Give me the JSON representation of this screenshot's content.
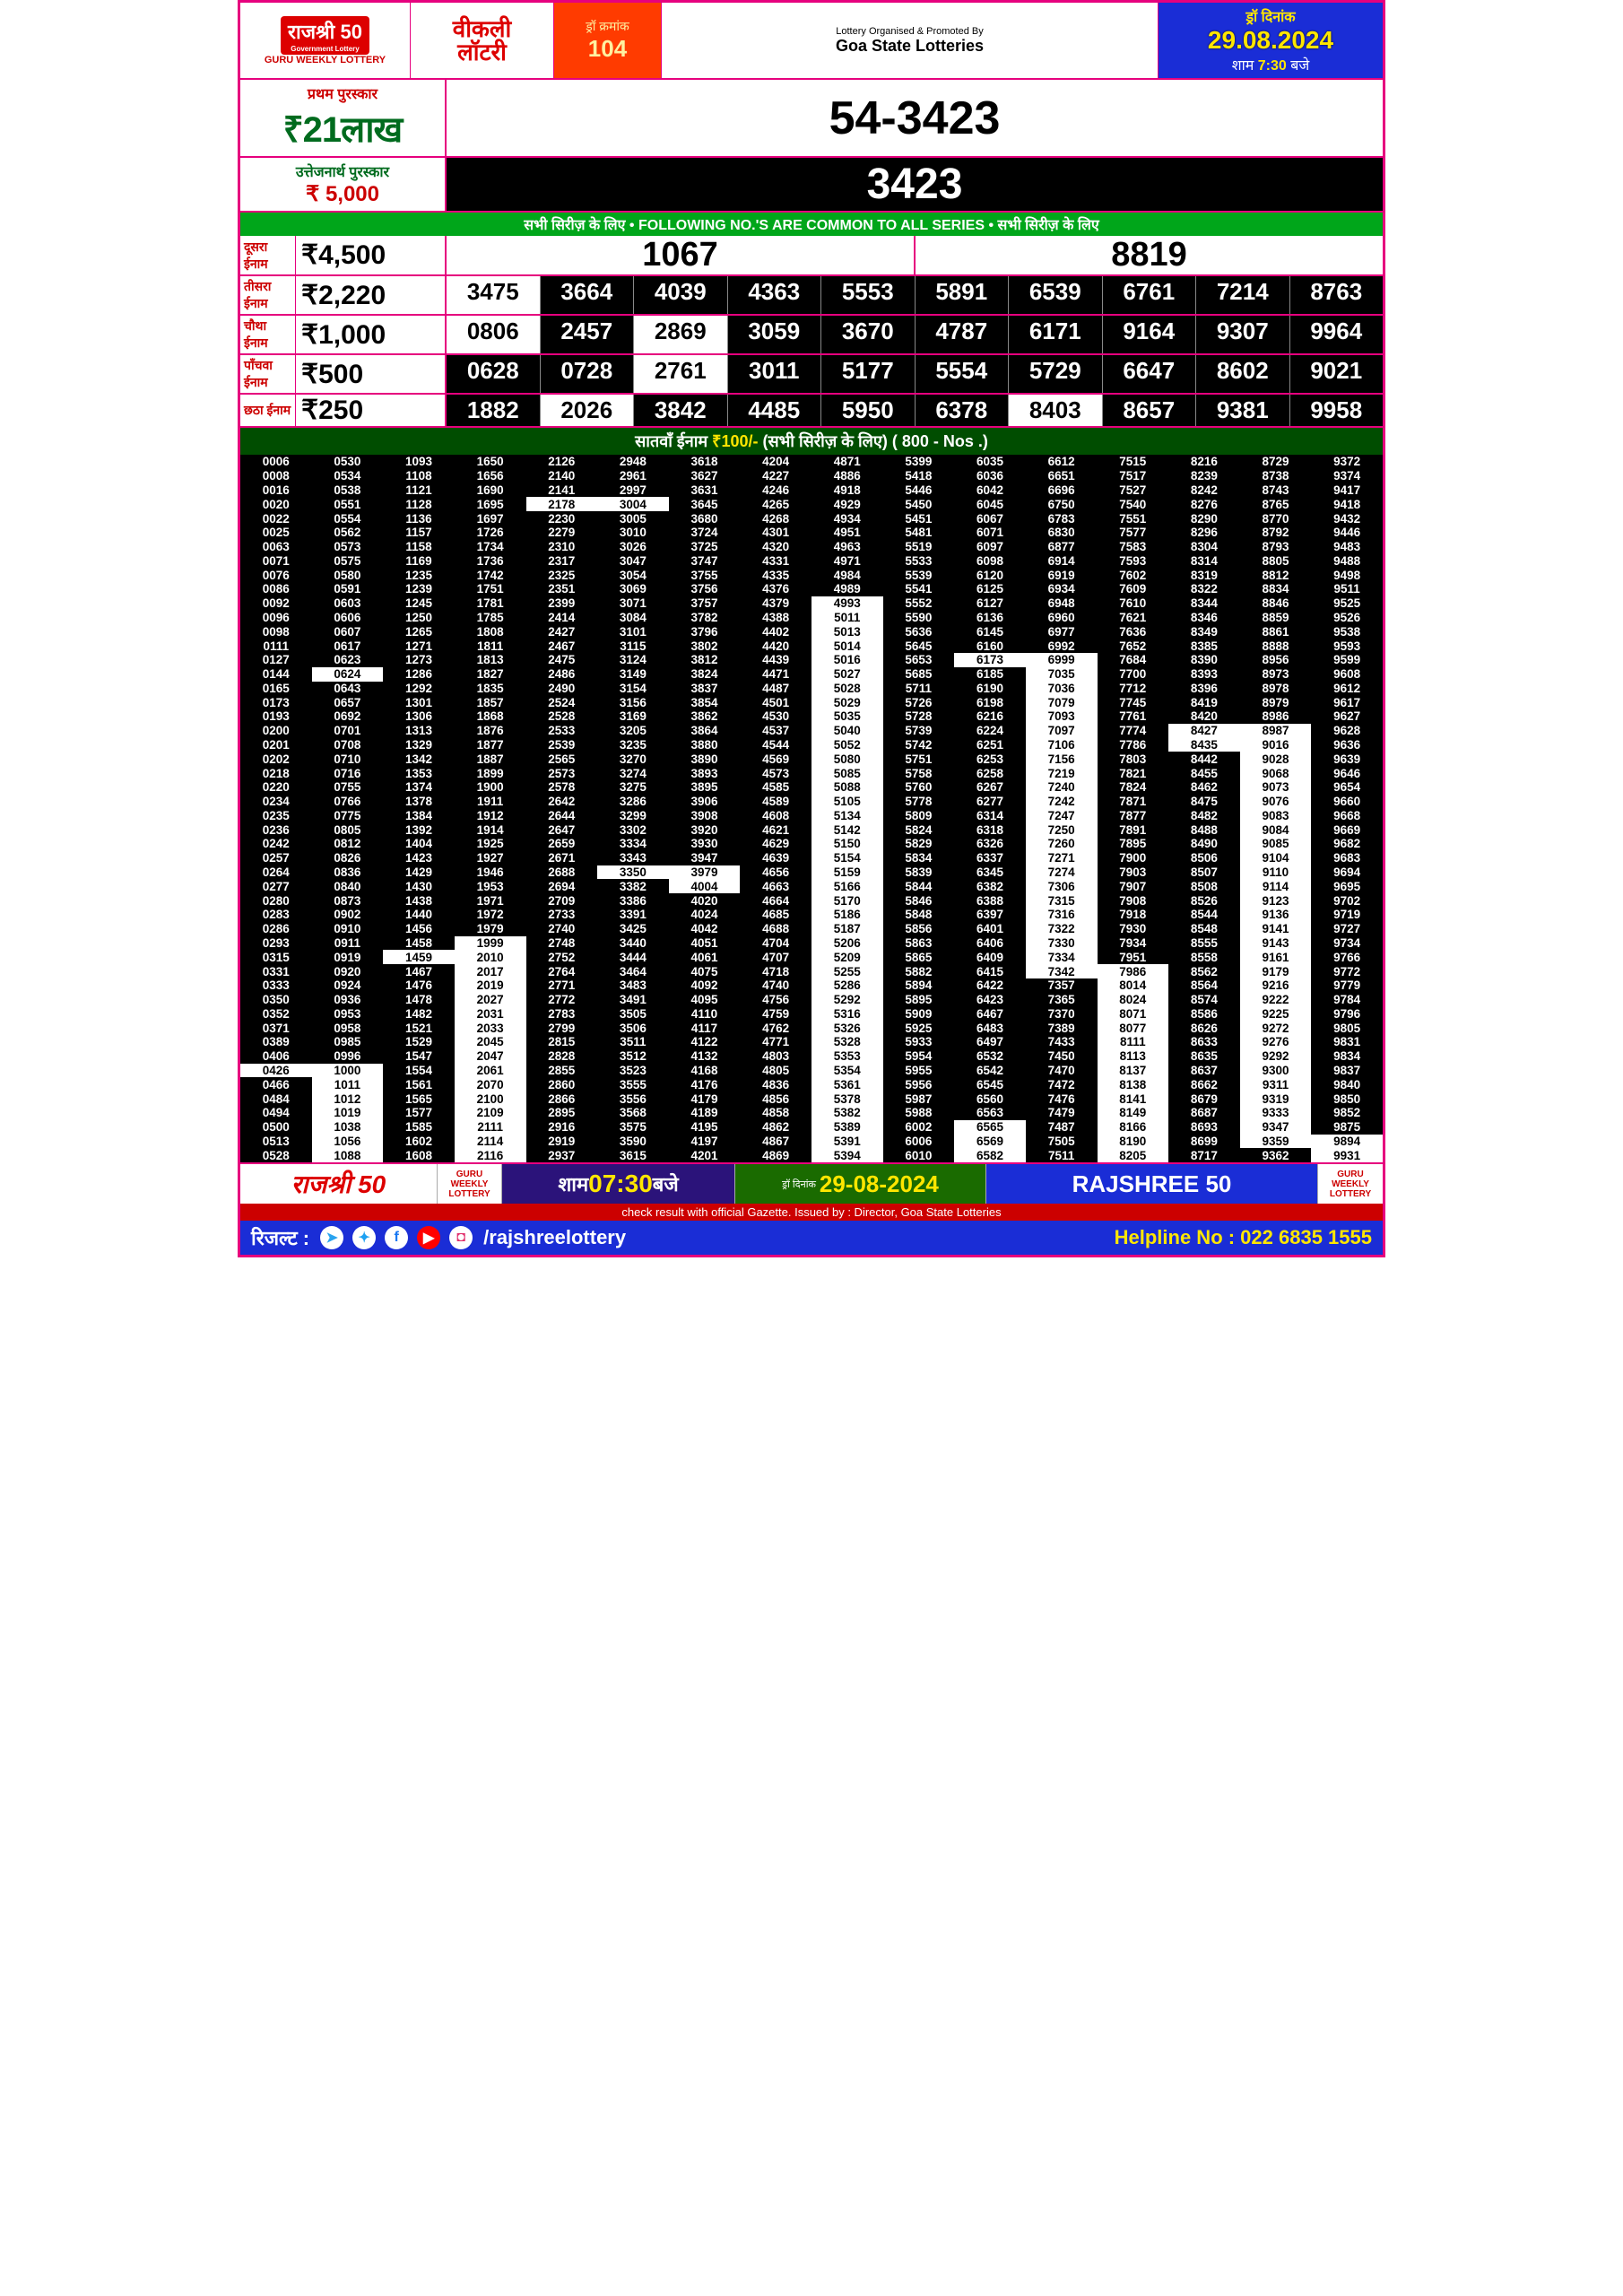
{
  "header": {
    "logo_main": "राजश्री 50",
    "logo_sub": "Government Lottery",
    "gwl": "GURU WEEKLY LOTTERY",
    "weekly_l1": "वीकली",
    "weekly_l2": "लॉटरी",
    "draw_lbl": "ड्रॉ क्रमांक",
    "draw_no": "104",
    "org_small": "Lottery Organised & Promoted By",
    "org_main": "Goa State Lotteries",
    "date_lbl": "ड्रॉ दिनांक",
    "date_val": "29.08.2024",
    "time_prefix": "शाम ",
    "time_val": "7:30",
    "time_suffix": " बजे"
  },
  "first": {
    "lbl": "प्रथम पुरस्कार",
    "amt": "₹21लाख",
    "num": "54-3423"
  },
  "cons": {
    "lbl": "उत्तेजनार्थ पुरस्कार",
    "amt": "₹ 5,000",
    "num": "3423"
  },
  "greenbar": "सभी सिरीज़ के लिए  •  FOLLOWING NO.'S ARE COMMON TO ALL SERIES  •  सभी सिरीज़ के लिए",
  "p2": {
    "lbl": "दूसरा ईनाम",
    "amt": "₹4,500",
    "n1": "1067",
    "n2": "8819"
  },
  "rows": [
    {
      "lbl": "तीसरा ईनाम",
      "amt": "₹2,220",
      "nums": [
        "3475",
        "3664",
        "4039",
        "4363",
        "5553",
        "5891",
        "6539",
        "6761",
        "7214",
        "8763"
      ],
      "white": [
        0
      ]
    },
    {
      "lbl": "चौथा ईनाम",
      "amt": "₹1,000",
      "nums": [
        "0806",
        "2457",
        "2869",
        "3059",
        "3670",
        "4787",
        "6171",
        "9164",
        "9307",
        "9964"
      ],
      "white": [
        0,
        2
      ]
    },
    {
      "lbl": "पाँचवा ईनाम",
      "amt": "₹500",
      "nums": [
        "0628",
        "0728",
        "2761",
        "3011",
        "5177",
        "5554",
        "5729",
        "6647",
        "8602",
        "9021"
      ],
      "white": [
        2
      ]
    },
    {
      "lbl": "छठा ईनाम",
      "amt": "₹250",
      "nums": [
        "1882",
        "2026",
        "3842",
        "4485",
        "5950",
        "6378",
        "8403",
        "8657",
        "9381",
        "9958"
      ],
      "white": [
        1,
        6
      ]
    }
  ],
  "seventh_bar": {
    "pre": "सातवाँ ईनाम ",
    "amt": "₹100/-",
    "mid": " (सभी सिरीज़ के लिए)   ",
    "count": "( 800 - Nos .)"
  },
  "grid_cols": [
    [
      "0006",
      "0008",
      "0016",
      "0020",
      "0022",
      "0025",
      "0063",
      "0071",
      "0076",
      "0086",
      "0092",
      "0096",
      "0098",
      "0111",
      "0127",
      "0144",
      "0165",
      "0173",
      "0193",
      "0200",
      "0201",
      "0202",
      "0218",
      "0220",
      "0234",
      "0235",
      "0236",
      "0242",
      "0257",
      "0264",
      "0277",
      "0280",
      "0283",
      "0286",
      "0293",
      "0315",
      "0331",
      "0333",
      "0350",
      "0352",
      "0371",
      "0389",
      "0406",
      "0426",
      "0466",
      "0484",
      "0494",
      "0500",
      "0513",
      "0528"
    ],
    [
      "0530",
      "0534",
      "0538",
      "0551",
      "0554",
      "0562",
      "0573",
      "0575",
      "0580",
      "0591",
      "0603",
      "0606",
      "0607",
      "0617",
      "0623",
      "0624",
      "0643",
      "0657",
      "0692",
      "0701",
      "0708",
      "0710",
      "0716",
      "0755",
      "0766",
      "0775",
      "0805",
      "0812",
      "0826",
      "0836",
      "0840",
      "0873",
      "0902",
      "0910",
      "0911",
      "0919",
      "0920",
      "0924",
      "0936",
      "0953",
      "0958",
      "0985",
      "0996",
      "1000",
      "1011",
      "1012",
      "1019",
      "1038",
      "1056",
      "1088"
    ],
    [
      "1093",
      "1108",
      "1121",
      "1128",
      "1136",
      "1157",
      "1158",
      "1169",
      "1235",
      "1239",
      "1245",
      "1250",
      "1265",
      "1271",
      "1273",
      "1286",
      "1292",
      "1301",
      "1306",
      "1313",
      "1329",
      "1342",
      "1353",
      "1374",
      "1378",
      "1384",
      "1392",
      "1404",
      "1423",
      "1429",
      "1430",
      "1438",
      "1440",
      "1456",
      "1458",
      "1459",
      "1467",
      "1476",
      "1478",
      "1482",
      "1521",
      "1529",
      "1547",
      "1554",
      "1561",
      "1565",
      "1577",
      "1585",
      "1602",
      "1608"
    ],
    [
      "1650",
      "1656",
      "1690",
      "1695",
      "1697",
      "1726",
      "1734",
      "1736",
      "1742",
      "1751",
      "1781",
      "1785",
      "1808",
      "1811",
      "1813",
      "1827",
      "1835",
      "1857",
      "1868",
      "1876",
      "1877",
      "1887",
      "1899",
      "1900",
      "1911",
      "1912",
      "1914",
      "1925",
      "1927",
      "1946",
      "1953",
      "1971",
      "1972",
      "1979",
      "1999",
      "2010",
      "2017",
      "2019",
      "2027",
      "2031",
      "2033",
      "2045",
      "2047",
      "2061",
      "2070",
      "2100",
      "2109",
      "2111",
      "2114",
      "2116"
    ],
    [
      "2126",
      "2140",
      "2141",
      "2178",
      "2230",
      "2279",
      "2310",
      "2317",
      "2325",
      "2351",
      "2399",
      "2414",
      "2427",
      "2467",
      "2475",
      "2486",
      "2490",
      "2524",
      "2528",
      "2533",
      "2539",
      "2565",
      "2573",
      "2578",
      "2642",
      "2644",
      "2647",
      "2659",
      "2671",
      "2688",
      "2694",
      "2709",
      "2733",
      "2740",
      "2748",
      "2752",
      "2764",
      "2771",
      "2772",
      "2783",
      "2799",
      "2815",
      "2828",
      "2855",
      "2860",
      "2866",
      "2895",
      "2916",
      "2919",
      "2937"
    ],
    [
      "2948",
      "2961",
      "2997",
      "3004",
      "3005",
      "3010",
      "3026",
      "3047",
      "3054",
      "3069",
      "3071",
      "3084",
      "3101",
      "3115",
      "3124",
      "3149",
      "3154",
      "3156",
      "3169",
      "3205",
      "3235",
      "3270",
      "3274",
      "3275",
      "3286",
      "3299",
      "3302",
      "3334",
      "3343",
      "3350",
      "3382",
      "3386",
      "3391",
      "3425",
      "3440",
      "3444",
      "3464",
      "3483",
      "3491",
      "3505",
      "3506",
      "3511",
      "3512",
      "3523",
      "3555",
      "3556",
      "3568",
      "3575",
      "3590",
      "3615"
    ],
    [
      "3618",
      "3627",
      "3631",
      "3645",
      "3680",
      "3724",
      "3725",
      "3747",
      "3755",
      "3756",
      "3757",
      "3782",
      "3796",
      "3802",
      "3812",
      "3824",
      "3837",
      "3854",
      "3862",
      "3864",
      "3880",
      "3890",
      "3893",
      "3895",
      "3906",
      "3908",
      "3920",
      "3930",
      "3947",
      "3979",
      "4004",
      "4020",
      "4024",
      "4042",
      "4051",
      "4061",
      "4075",
      "4092",
      "4095",
      "4110",
      "4117",
      "4122",
      "4132",
      "4168",
      "4176",
      "4179",
      "4189",
      "4195",
      "4197",
      "4201"
    ],
    [
      "4204",
      "4227",
      "4246",
      "4265",
      "4268",
      "4301",
      "4320",
      "4331",
      "4335",
      "4376",
      "4379",
      "4388",
      "4402",
      "4420",
      "4439",
      "4471",
      "4487",
      "4501",
      "4530",
      "4537",
      "4544",
      "4569",
      "4573",
      "4585",
      "4589",
      "4608",
      "4621",
      "4629",
      "4639",
      "4656",
      "4663",
      "4664",
      "4685",
      "4688",
      "4704",
      "4707",
      "4718",
      "4740",
      "4756",
      "4759",
      "4762",
      "4771",
      "4803",
      "4805",
      "4836",
      "4856",
      "4858",
      "4862",
      "4867",
      "4869"
    ],
    [
      "4871",
      "4886",
      "4918",
      "4929",
      "4934",
      "4951",
      "4963",
      "4971",
      "4984",
      "4989",
      "4993",
      "5011",
      "5013",
      "5014",
      "5016",
      "5027",
      "5028",
      "5029",
      "5035",
      "5040",
      "5052",
      "5080",
      "5085",
      "5088",
      "5105",
      "5134",
      "5142",
      "5150",
      "5154",
      "5159",
      "5166",
      "5170",
      "5186",
      "5187",
      "5206",
      "5209",
      "5255",
      "5286",
      "5292",
      "5316",
      "5326",
      "5328",
      "5353",
      "5354",
      "5361",
      "5378",
      "5382",
      "5389",
      "5391",
      "5394"
    ],
    [
      "5399",
      "5418",
      "5446",
      "5450",
      "5451",
      "5481",
      "5519",
      "5533",
      "5539",
      "5541",
      "5552",
      "5590",
      "5636",
      "5645",
      "5653",
      "5685",
      "5711",
      "5726",
      "5728",
      "5739",
      "5742",
      "5751",
      "5758",
      "5760",
      "5778",
      "5809",
      "5824",
      "5829",
      "5834",
      "5839",
      "5844",
      "5846",
      "5848",
      "5856",
      "5863",
      "5865",
      "5882",
      "5894",
      "5895",
      "5909",
      "5925",
      "5933",
      "5954",
      "5955",
      "5956",
      "5987",
      "5988",
      "6002",
      "6006",
      "6010"
    ],
    [
      "6035",
      "6036",
      "6042",
      "6045",
      "6067",
      "6071",
      "6097",
      "6098",
      "6120",
      "6125",
      "6127",
      "6136",
      "6145",
      "6160",
      "6173",
      "6185",
      "6190",
      "6198",
      "6216",
      "6224",
      "6251",
      "6253",
      "6258",
      "6267",
      "6277",
      "6314",
      "6318",
      "6326",
      "6337",
      "6345",
      "6382",
      "6388",
      "6397",
      "6401",
      "6406",
      "6409",
      "6415",
      "6422",
      "6423",
      "6467",
      "6483",
      "6497",
      "6532",
      "6542",
      "6545",
      "6560",
      "6563",
      "6565",
      "6569",
      "6582"
    ],
    [
      "6612",
      "6651",
      "6696",
      "6750",
      "6783",
      "6830",
      "6877",
      "6914",
      "6919",
      "6934",
      "6948",
      "6960",
      "6977",
      "6992",
      "6999",
      "7035",
      "7036",
      "7079",
      "7093",
      "7097",
      "7106",
      "7156",
      "7219",
      "7240",
      "7242",
      "7247",
      "7250",
      "7260",
      "7271",
      "7274",
      "7306",
      "7315",
      "7316",
      "7322",
      "7330",
      "7334",
      "7342",
      "7357",
      "7365",
      "7370",
      "7389",
      "7433",
      "7450",
      "7470",
      "7472",
      "7476",
      "7479",
      "7487",
      "7505",
      "7511"
    ],
    [
      "7515",
      "7517",
      "7527",
      "7540",
      "7551",
      "7577",
      "7583",
      "7593",
      "7602",
      "7609",
      "7610",
      "7621",
      "7636",
      "7652",
      "7684",
      "7700",
      "7712",
      "7745",
      "7761",
      "7774",
      "7786",
      "7803",
      "7821",
      "7824",
      "7871",
      "7877",
      "7891",
      "7895",
      "7900",
      "7903",
      "7907",
      "7908",
      "7918",
      "7930",
      "7934",
      "7951",
      "7986",
      "8014",
      "8024",
      "8071",
      "8077",
      "8111",
      "8113",
      "8137",
      "8138",
      "8141",
      "8149",
      "8166",
      "8190",
      "8205"
    ],
    [
      "8216",
      "8239",
      "8242",
      "8276",
      "8290",
      "8296",
      "8304",
      "8314",
      "8319",
      "8322",
      "8344",
      "8346",
      "8349",
      "8385",
      "8390",
      "8393",
      "8396",
      "8419",
      "8420",
      "8427",
      "8435",
      "8442",
      "8455",
      "8462",
      "8475",
      "8482",
      "8488",
      "8490",
      "8506",
      "8507",
      "8508",
      "8526",
      "8544",
      "8548",
      "8555",
      "8558",
      "8562",
      "8564",
      "8574",
      "8586",
      "8626",
      "8633",
      "8635",
      "8637",
      "8662",
      "8679",
      "8687",
      "8693",
      "8699",
      "8717"
    ],
    [
      "8729",
      "8738",
      "8743",
      "8765",
      "8770",
      "8792",
      "8793",
      "8805",
      "8812",
      "8834",
      "8846",
      "8859",
      "8861",
      "8888",
      "8956",
      "8973",
      "8978",
      "8979",
      "8986",
      "8987",
      "9016",
      "9028",
      "9068",
      "9073",
      "9076",
      "9083",
      "9084",
      "9085",
      "9104",
      "9110",
      "9114",
      "9123",
      "9136",
      "9141",
      "9143",
      "9161",
      "9179",
      "9216",
      "9222",
      "9225",
      "9272",
      "9276",
      "9292",
      "9300",
      "9311",
      "9319",
      "9333",
      "9347",
      "9359",
      "9362"
    ],
    [
      "9372",
      "9374",
      "9417",
      "9418",
      "9432",
      "9446",
      "9483",
      "9488",
      "9498",
      "9511",
      "9525",
      "9526",
      "9538",
      "9593",
      "9599",
      "9608",
      "9612",
      "9617",
      "9627",
      "9628",
      "9636",
      "9639",
      "9646",
      "9654",
      "9660",
      "9668",
      "9669",
      "9682",
      "9683",
      "9694",
      "9695",
      "9702",
      "9719",
      "9727",
      "9734",
      "9766",
      "9772",
      "9779",
      "9784",
      "9796",
      "9805",
      "9831",
      "9834",
      "9837",
      "9840",
      "9850",
      "9852",
      "9875",
      "9894",
      "9931"
    ]
  ],
  "grid_white": {
    "0": [
      43
    ],
    "1": [
      15,
      43,
      44,
      45,
      46,
      47,
      48,
      49
    ],
    "2": [
      35
    ],
    "3": [
      34,
      35,
      36,
      37,
      38,
      39,
      40,
      41,
      42,
      43,
      44,
      45,
      46,
      47,
      48,
      49
    ],
    "4": [
      3
    ],
    "5": [
      3,
      29
    ],
    "6": [
      29,
      30
    ],
    "8": [
      10,
      11,
      12,
      13,
      14,
      15,
      16,
      17,
      18,
      19,
      20,
      21,
      22,
      23,
      24,
      25,
      26,
      27,
      28,
      29,
      30,
      31,
      32,
      33,
      34,
      35,
      36,
      37,
      38,
      39,
      40,
      41,
      42,
      43,
      44,
      45,
      46,
      47,
      48,
      49
    ],
    "10": [
      14,
      47,
      48,
      49
    ],
    "11": [
      14,
      15,
      16,
      17,
      18,
      19,
      20,
      21,
      22,
      23,
      24,
      25,
      26,
      27,
      28,
      29,
      30,
      31,
      32,
      33,
      34,
      35,
      36
    ],
    "12": [
      36,
      37,
      38,
      39,
      40,
      41,
      42,
      43,
      44,
      45,
      46,
      47,
      48,
      49
    ],
    "13": [
      19,
      20
    ],
    "14": [
      19,
      20,
      21,
      22,
      23,
      24,
      25,
      26,
      27,
      28,
      29,
      30,
      31,
      32,
      33,
      34,
      35,
      36,
      37,
      38,
      39,
      40,
      41,
      42,
      43,
      44,
      45,
      46,
      47,
      48
    ],
    "15": [
      48,
      49
    ]
  },
  "footer": {
    "rajshree": "राजश्री 50",
    "guru": "GURU WEEKLY LOTTERY",
    "time_pre": "शाम ",
    "time": "07:30",
    "time_post": " बजे",
    "date_lbl": "ड्रॉ दिनांक",
    "date": "29-08-2024",
    "rajshree2": "RAJSHREE 50",
    "notice": "check result with official Gazette. Issued by : Director, Goa State Lotteries",
    "result_lbl": "रिजल्ट  :",
    "handle": "/rajshreelottery",
    "helpline": "Helpline No : 022 6835 1555"
  },
  "colors": {
    "magenta": "#e6007e",
    "red": "#d00000",
    "green": "#008a1e",
    "darkgreen": "#004d00",
    "blue": "#1a2dd6",
    "orange": "#ff3b00",
    "purple": "#2b137a",
    "yellow": "#ffe600"
  }
}
